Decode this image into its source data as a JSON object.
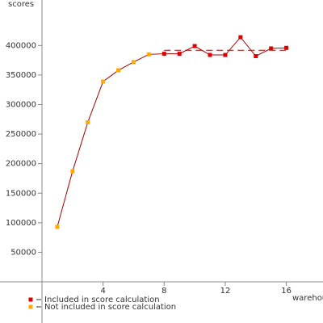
{
  "chart_data": {
    "type": "line",
    "y_label": "scores",
    "x_label": "warehouses",
    "series": [
      {
        "name": "Included in score calculation",
        "color": "#dd0000",
        "x": [
          8,
          9,
          10,
          11,
          12,
          13,
          14,
          15,
          16
        ],
        "values": [
          386000,
          386000,
          399000,
          384000,
          384000,
          414000,
          382000,
          395000,
          396000
        ]
      },
      {
        "name": "Not included in score calculation",
        "color": "#ffaa00",
        "x": [
          1,
          2,
          3,
          4,
          5,
          6,
          7
        ],
        "values": [
          93000,
          187000,
          270000,
          339000,
          358000,
          372000,
          385000
        ]
      }
    ],
    "line_color": "#aa0000",
    "average": 392000,
    "xlim": [
      0,
      18.4
    ],
    "xticks": [
      4,
      8,
      12,
      16
    ],
    "ylim": [
      0,
      477000
    ],
    "yticks": [
      50000,
      100000,
      150000,
      200000,
      250000,
      300000,
      350000,
      400000
    ]
  }
}
